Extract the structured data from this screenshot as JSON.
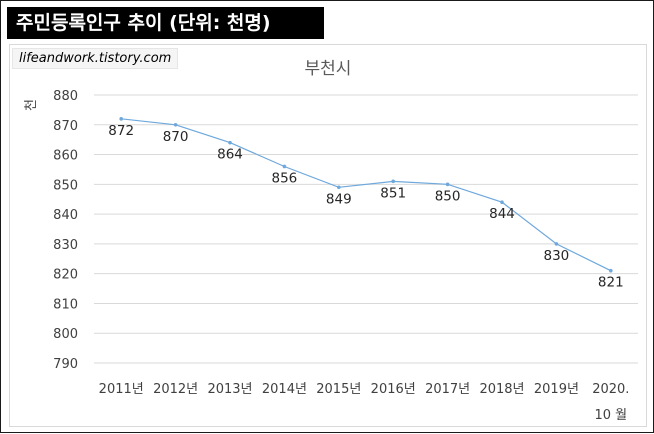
{
  "header": {
    "title": "주민등록인구 추이 (단위: 천명)"
  },
  "source": {
    "text": "lifeandwork.tistory.com"
  },
  "colors": {
    "line": "#6fa8dc",
    "grid": "#d9d9d9",
    "header_bg": "#000000"
  },
  "chart_data": {
    "type": "line",
    "title": "부천시",
    "ylabel": "천",
    "xlabel": "",
    "ylim": [
      790,
      880
    ],
    "ytick_step": 10,
    "grid": true,
    "categories": [
      "2011년",
      "2012년",
      "2013년",
      "2014년",
      "2015년",
      "2016년",
      "2017년",
      "2018년",
      "2019년",
      "2020.\n10 월"
    ],
    "series": [
      {
        "name": "부천시",
        "values": [
          872,
          870,
          864,
          856,
          849,
          851,
          850,
          844,
          830,
          821
        ]
      }
    ]
  }
}
